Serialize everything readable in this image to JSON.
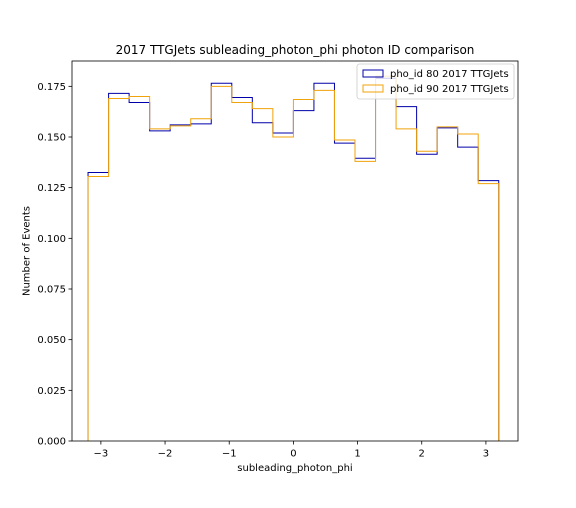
{
  "chart_data": {
    "type": "step",
    "title": "2017 TTGJets subleading_photon_phi photon ID comparison",
    "xlabel": "subleading_photon_phi",
    "ylabel": "Number of Events",
    "xlim": [
      -3.45,
      3.5
    ],
    "ylim": [
      0.0,
      0.1875
    ],
    "xticks": [
      -3,
      -2,
      -1,
      0,
      1,
      2,
      3
    ],
    "xtick_labels": [
      "−3",
      "−2",
      "−1",
      "0",
      "1",
      "2",
      "3"
    ],
    "yticks": [
      0.0,
      0.025,
      0.05,
      0.075,
      0.1,
      0.125,
      0.15,
      0.175
    ],
    "ytick_labels": [
      "0.000",
      "0.025",
      "0.050",
      "0.075",
      "0.100",
      "0.125",
      "0.150",
      "0.175"
    ],
    "bin_edges": [
      -3.2,
      -2.88,
      -2.56,
      -2.24,
      -1.92,
      -1.6,
      -1.28,
      -0.96,
      -0.64,
      -0.32,
      0.0,
      0.32,
      0.64,
      0.96,
      1.28,
      1.6,
      1.92,
      2.24,
      2.56,
      2.88,
      3.2
    ],
    "grid": false,
    "legend_position": "top-right",
    "series": [
      {
        "name": "pho_id 80 2017 TTGJets",
        "color": "#0000aa",
        "values": [
          0.1325,
          0.1715,
          0.167,
          0.153,
          0.156,
          0.1565,
          0.1765,
          0.1695,
          0.157,
          0.152,
          0.163,
          0.1765,
          0.147,
          0.1395,
          0.179,
          0.165,
          0.1415,
          0.1545,
          0.145,
          0.1285
        ]
      },
      {
        "name": "pho_id 90 2017 TTGJets",
        "color": "#f0a30a",
        "values": [
          0.1305,
          0.169,
          0.17,
          0.154,
          0.1555,
          0.159,
          0.175,
          0.167,
          0.164,
          0.15,
          0.1685,
          0.173,
          0.1485,
          0.138,
          0.18,
          0.154,
          0.143,
          0.155,
          0.1515,
          0.127
        ]
      }
    ]
  }
}
